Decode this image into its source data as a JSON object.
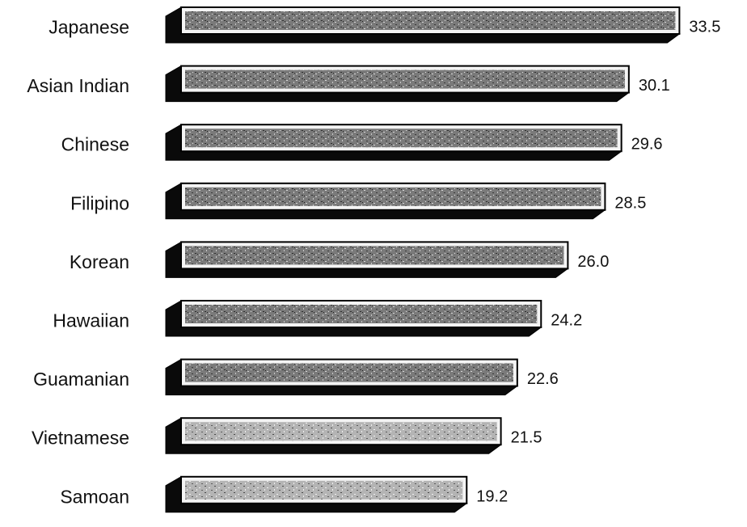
{
  "chart_data": {
    "type": "bar",
    "orientation": "horizontal",
    "categories": [
      "Japanese",
      "Asian Indian",
      "Chinese",
      "Filipino",
      "Korean",
      "Hawaiian",
      "Guamanian",
      "Vietnamese",
      "Samoan"
    ],
    "values": [
      33.5,
      30.1,
      29.6,
      28.5,
      26.0,
      24.2,
      22.6,
      21.5,
      19.2
    ],
    "value_labels": [
      "33.5",
      "30.1",
      "29.6",
      "28.5",
      "26.0",
      "24.2",
      "22.6",
      "21.5",
      "19.2"
    ],
    "title": "",
    "xlabel": "",
    "ylabel": "",
    "grid": false,
    "legend": "none",
    "style": "3d-shaded-bars"
  },
  "colors": {
    "bar_fill": "#6e6e6e",
    "bar_face_light": "#f4f4f4",
    "bar_shadow": "#0a0a0a",
    "bar_outline": "#000000",
    "text": "#111111"
  }
}
